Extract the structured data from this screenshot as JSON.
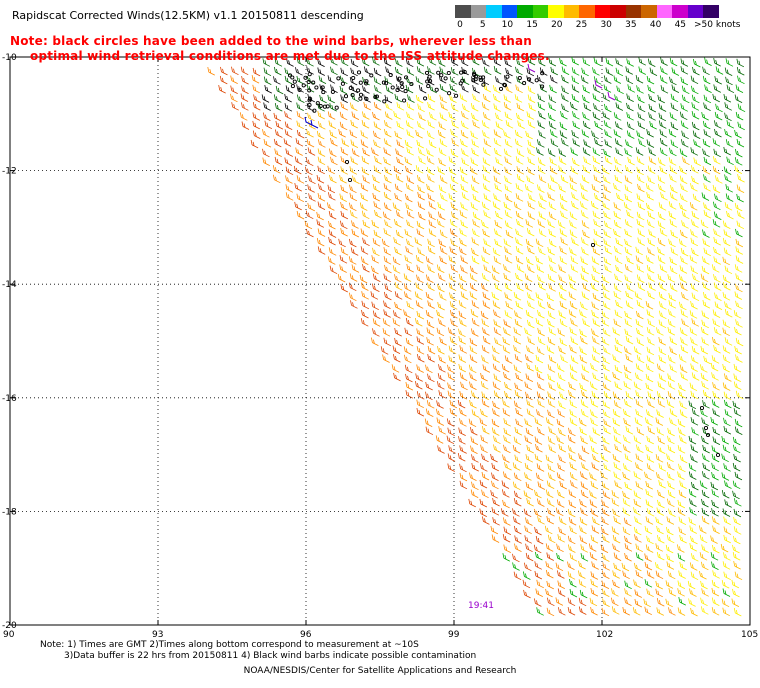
{
  "title": "Rapidscat Corrected Winds(12.5KM) v1.1 20150811 descending",
  "note": {
    "line1": "Note: black circles have been added to the wind barbs, wherever less than",
    "line2": "optimal wind retrieval conditions are met due to the ISS attitude changes."
  },
  "colorbar": {
    "labels": [
      "0",
      "5",
      "10",
      "15",
      "20",
      "25",
      "30",
      "35",
      "40",
      "45",
      ">50 knots"
    ],
    "colors": [
      "#4d4d4d",
      "#9a9a9a",
      "#00ccff",
      "#0055ff",
      "#00aa00",
      "#33cc00",
      "#ffff00",
      "#ffbb00",
      "#ff6600",
      "#ff0000",
      "#cc0000",
      "#993300",
      "#cc6600",
      "#ff66ff",
      "#cc00cc",
      "#6600cc",
      "#330066"
    ]
  },
  "map": {
    "lat_labels": [
      "-10",
      "-12",
      "-14",
      "-16",
      "-18",
      "-20"
    ],
    "lon_labels": [
      "90",
      "93",
      "96",
      "99",
      "102",
      "105"
    ],
    "time_label": "19:41",
    "wind_barb_colors": {
      "black": "#000000",
      "dark_green": "#006600",
      "green": "#00aa00",
      "yellow": "#ffee00",
      "gold": "#ffbb00",
      "orange": "#ff8800",
      "red_orange": "#dd4400",
      "blue": "#0000cc",
      "purple": "#9900cc"
    }
  },
  "footer": {
    "line1": "Note: 1) Times are GMT 2)Times along bottom correspond to measurement at ~10S",
    "line2": "3)Data buffer is 22 hrs from 20150811 4) Black wind barbs indicate possible contamination",
    "line3": "NOAA/NESDIS/Center for Satellite Applications and Research"
  }
}
